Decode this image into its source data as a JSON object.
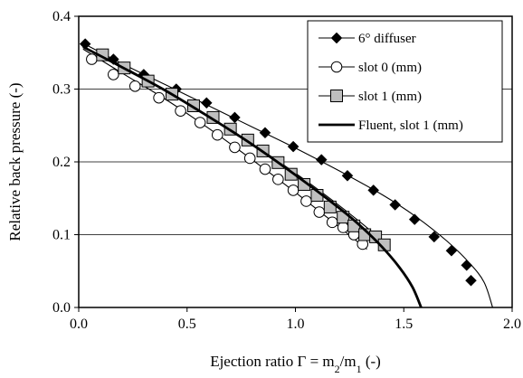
{
  "chart_data": {
    "type": "scatter",
    "xlabel_main": "Ejection ratio Γ = m",
    "xlabel_sub1": "2",
    "xlabel_mid": "/m",
    "xlabel_sub2": "1",
    "xlabel_tail": " (-)",
    "ylabel": "Relative back pressure (-)",
    "xlim": [
      0,
      2
    ],
    "ylim": [
      0,
      0.4
    ],
    "xticks": [
      0,
      0.5,
      1,
      1.5,
      2
    ],
    "yticks": [
      0,
      0.1,
      0.2,
      0.3,
      0.4
    ],
    "xtick_labels": [
      "0.0",
      "0.5",
      "1.0",
      "1.5",
      "2.0"
    ],
    "ytick_labels": [
      "0.0",
      "0.1",
      "0.2",
      "0.3",
      "0.4"
    ],
    "grid": "horizontal",
    "legend_position": "top-right",
    "series": [
      {
        "name": "6° diffuser",
        "marker": "diamond",
        "x": [
          0.03,
          0.16,
          0.3,
          0.45,
          0.59,
          0.72,
          0.86,
          0.99,
          1.12,
          1.24,
          1.36,
          1.46,
          1.55,
          1.64,
          1.72,
          1.79,
          1.81
        ],
        "y": [
          0.362,
          0.341,
          0.32,
          0.3,
          0.281,
          0.261,
          0.24,
          0.221,
          0.203,
          0.181,
          0.161,
          0.141,
          0.121,
          0.097,
          0.078,
          0.058,
          0.037
        ],
        "fit_x": [
          0.02,
          0.2,
          0.4,
          0.6,
          0.8,
          1.0,
          1.2,
          1.4,
          1.55,
          1.7,
          1.8,
          1.87,
          1.91
        ],
        "fit_y": [
          0.363,
          0.335,
          0.306,
          0.277,
          0.248,
          0.219,
          0.188,
          0.155,
          0.126,
          0.091,
          0.062,
          0.035,
          0.0
        ]
      },
      {
        "name": "slot 0 (mm)",
        "marker": "circle",
        "x": [
          0.06,
          0.16,
          0.26,
          0.37,
          0.47,
          0.56,
          0.64,
          0.72,
          0.79,
          0.86,
          0.92,
          0.99,
          1.05,
          1.11,
          1.17,
          1.22,
          1.27,
          1.31
        ],
        "y": [
          0.341,
          0.32,
          0.304,
          0.288,
          0.27,
          0.254,
          0.237,
          0.22,
          0.205,
          0.19,
          0.176,
          0.161,
          0.146,
          0.131,
          0.117,
          0.11,
          0.1,
          0.087
        ],
        "fit_x": [
          0.02,
          0.2,
          0.4,
          0.6,
          0.8,
          1.0,
          1.2,
          1.33
        ],
        "fit_y": [
          0.355,
          0.322,
          0.286,
          0.246,
          0.203,
          0.158,
          0.111,
          0.08
        ]
      },
      {
        "name": "slot 1 (mm)",
        "marker": "square",
        "x": [
          0.11,
          0.21,
          0.32,
          0.43,
          0.53,
          0.62,
          0.7,
          0.78,
          0.85,
          0.92,
          0.98,
          1.04,
          1.1,
          1.16,
          1.22,
          1.27,
          1.32,
          1.37,
          1.41
        ],
        "y": [
          0.347,
          0.329,
          0.311,
          0.293,
          0.277,
          0.261,
          0.245,
          0.23,
          0.215,
          0.199,
          0.183,
          0.169,
          0.154,
          0.138,
          0.124,
          0.112,
          0.1,
          0.097,
          0.086
        ],
        "fit_x": [
          0.1,
          0.3,
          0.5,
          0.7,
          0.9,
          1.1,
          1.3,
          1.41
        ],
        "fit_y": [
          0.349,
          0.315,
          0.28,
          0.244,
          0.205,
          0.163,
          0.117,
          0.089
        ]
      },
      {
        "name": "Fluent, slot 1 (mm)",
        "marker": "line",
        "x": [
          0.02,
          0.2,
          0.4,
          0.6,
          0.8,
          1.0,
          1.2,
          1.3,
          1.4,
          1.48,
          1.54,
          1.58
        ],
        "y": [
          0.358,
          0.33,
          0.298,
          0.262,
          0.224,
          0.182,
          0.137,
          0.112,
          0.083,
          0.055,
          0.028,
          0.0
        ]
      }
    ]
  }
}
